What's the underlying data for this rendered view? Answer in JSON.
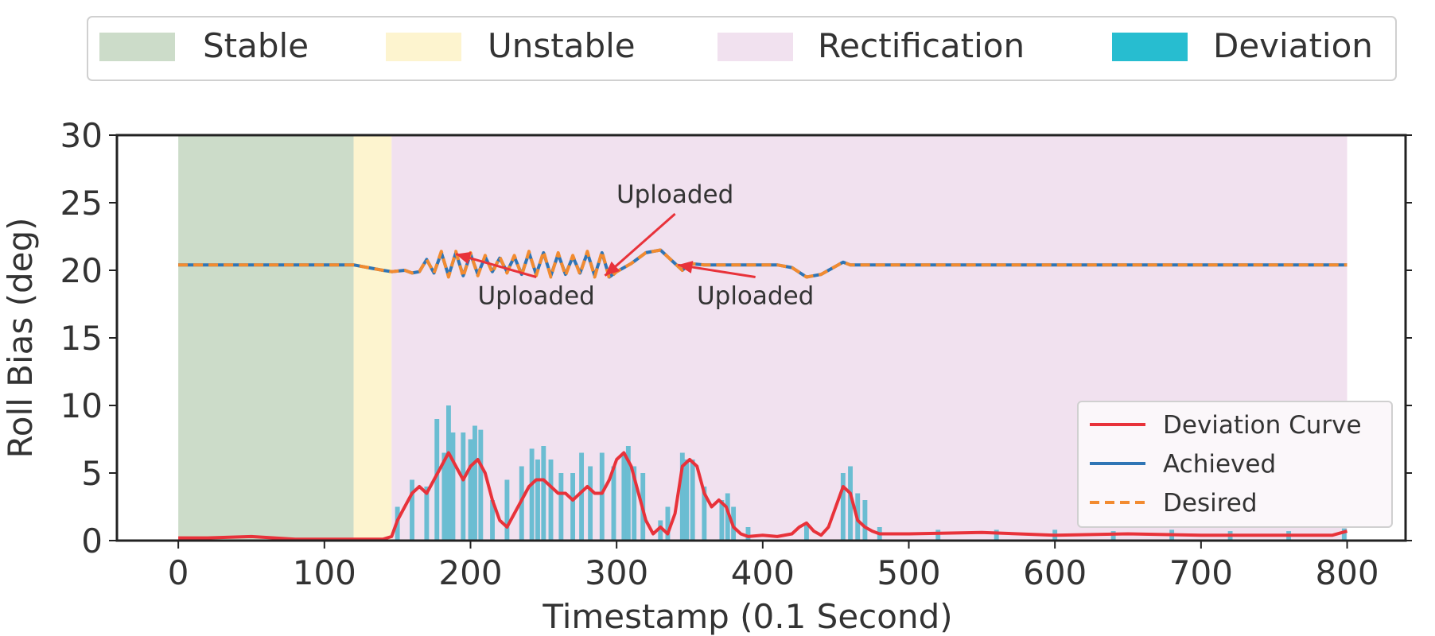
{
  "top_legend": [
    {
      "label": "Stable",
      "color": "#ccdcc9"
    },
    {
      "label": "Unstable",
      "color": "#fdf4cf"
    },
    {
      "label": "Rectification",
      "color": "#f1e1ef"
    },
    {
      "label": "Deviation",
      "color": "#27bdd0"
    }
  ],
  "chart_data": {
    "type": "line",
    "title": "",
    "xlabel": "Timestamp (0.1 Second)",
    "ylabel": "Roll Bias (deg)",
    "xlim": [
      -42,
      840
    ],
    "ylim": [
      0,
      30
    ],
    "xticks": [
      0,
      100,
      200,
      300,
      400,
      500,
      600,
      700,
      800
    ],
    "yticks": [
      0,
      5,
      10,
      15,
      20,
      25,
      30
    ],
    "grid": false,
    "regions": [
      {
        "label": "Stable",
        "x0": 0,
        "x1": 120,
        "color": "#ccdcc9"
      },
      {
        "label": "Unstable",
        "x0": 120,
        "x1": 146,
        "color": "#fdf4cf"
      },
      {
        "label": "Rectification",
        "x0": 146,
        "x1": 800,
        "color": "#f1e1ef"
      }
    ],
    "deviation_bars": {
      "label": "Deviation",
      "color": "#6bbdd2",
      "x": [
        150,
        160,
        170,
        177,
        182,
        185,
        188,
        195,
        200,
        203,
        207,
        215,
        225,
        235,
        242,
        246,
        250,
        255,
        262,
        270,
        276,
        282,
        290,
        298,
        305,
        308,
        312,
        318,
        330,
        335,
        345,
        348,
        352,
        360,
        372,
        376,
        380,
        390,
        430,
        455,
        460,
        465,
        470,
        480,
        520,
        560,
        600,
        640,
        680,
        720,
        760,
        798
      ],
      "values": [
        2.5,
        4.5,
        4.0,
        9.0,
        6.5,
        10.0,
        8.0,
        8.0,
        7.5,
        8.5,
        8.2,
        3.0,
        4.5,
        5.5,
        6.8,
        6.0,
        7.0,
        6.0,
        5.0,
        5.0,
        6.5,
        5.5,
        6.5,
        5.5,
        6.5,
        7.0,
        5.5,
        5.0,
        1.5,
        2.5,
        6.5,
        6.0,
        6.0,
        4.0,
        3.0,
        3.5,
        2.5,
        1.0,
        1.2,
        5.0,
        5.5,
        3.5,
        3.0,
        1.0,
        0.8,
        0.8,
        0.8,
        0.7,
        0.8,
        0.7,
        0.7,
        0.9
      ]
    },
    "series": [
      {
        "name": "Deviation Curve",
        "color": "#e8323a",
        "style": "solid",
        "x": [
          0,
          20,
          50,
          80,
          120,
          140,
          146,
          150,
          155,
          160,
          165,
          170,
          175,
          180,
          185,
          190,
          195,
          200,
          205,
          210,
          215,
          220,
          225,
          230,
          235,
          240,
          245,
          250,
          255,
          260,
          265,
          270,
          275,
          280,
          285,
          290,
          295,
          300,
          305,
          310,
          315,
          320,
          325,
          330,
          335,
          340,
          345,
          350,
          355,
          360,
          365,
          370,
          375,
          380,
          385,
          390,
          400,
          410,
          420,
          425,
          430,
          435,
          440,
          445,
          450,
          455,
          460,
          465,
          470,
          475,
          480,
          500,
          550,
          600,
          650,
          700,
          750,
          790,
          800
        ],
        "y": [
          0.2,
          0.2,
          0.3,
          0.1,
          0.1,
          0.1,
          0.3,
          1.5,
          2.5,
          3.5,
          4.0,
          3.5,
          4.5,
          5.5,
          6.5,
          5.5,
          4.5,
          5.5,
          6.0,
          5.0,
          3.0,
          1.5,
          1.0,
          2.0,
          3.0,
          4.0,
          4.5,
          4.5,
          4.0,
          3.5,
          3.5,
          3.0,
          3.5,
          4.0,
          3.5,
          3.5,
          4.5,
          6.0,
          6.5,
          5.5,
          3.5,
          1.5,
          0.5,
          1.0,
          0.5,
          2.0,
          5.5,
          6.0,
          5.5,
          3.5,
          2.5,
          3.0,
          2.5,
          1.0,
          0.5,
          0.3,
          0.4,
          0.3,
          0.5,
          1.0,
          1.3,
          0.7,
          0.4,
          1.0,
          2.5,
          4.0,
          3.5,
          1.5,
          1.0,
          0.7,
          0.5,
          0.5,
          0.6,
          0.4,
          0.5,
          0.4,
          0.4,
          0.4,
          0.7
        ]
      },
      {
        "name": "Achieved",
        "color": "#2f75b5",
        "style": "solid",
        "x": [
          0,
          120,
          130,
          140,
          146,
          155,
          160,
          165,
          170,
          175,
          180,
          185,
          190,
          195,
          200,
          205,
          210,
          215,
          220,
          225,
          230,
          235,
          240,
          245,
          250,
          255,
          260,
          265,
          270,
          275,
          280,
          285,
          290,
          295,
          300,
          310,
          320,
          330,
          335,
          340,
          345,
          350,
          360,
          400,
          410,
          420,
          430,
          440,
          450,
          455,
          460,
          470,
          800
        ],
        "y": [
          20.4,
          20.4,
          20.2,
          20.0,
          19.9,
          20.0,
          19.8,
          19.9,
          20.8,
          19.8,
          21.3,
          19.6,
          21.3,
          19.6,
          21.2,
          19.7,
          21.0,
          19.9,
          20.9,
          19.9,
          21.0,
          19.7,
          21.3,
          19.7,
          21.3,
          19.6,
          21.2,
          19.7,
          21.0,
          19.8,
          21.3,
          19.6,
          21.3,
          19.5,
          19.9,
          20.5,
          21.3,
          21.5,
          21.0,
          20.5,
          20.0,
          20.5,
          20.4,
          20.4,
          20.4,
          20.2,
          19.5,
          19.7,
          20.3,
          20.6,
          20.4,
          20.4,
          20.4
        ]
      },
      {
        "name": "Desired",
        "color": "#f28b30",
        "style": "dashed",
        "x": [
          0,
          120,
          130,
          140,
          146,
          155,
          160,
          165,
          170,
          175,
          180,
          185,
          190,
          195,
          200,
          205,
          210,
          215,
          220,
          225,
          230,
          235,
          240,
          245,
          250,
          255,
          260,
          265,
          270,
          275,
          280,
          285,
          290,
          295,
          300,
          310,
          320,
          330,
          335,
          340,
          345,
          350,
          360,
          400,
          410,
          420,
          430,
          440,
          450,
          455,
          460,
          470,
          800
        ],
        "y": [
          20.4,
          20.4,
          20.2,
          20.0,
          19.9,
          20.0,
          19.8,
          19.9,
          20.8,
          19.8,
          21.4,
          19.5,
          21.4,
          19.5,
          21.3,
          19.6,
          21.1,
          19.8,
          21.0,
          19.8,
          21.1,
          19.6,
          21.4,
          19.6,
          21.4,
          19.5,
          21.3,
          19.6,
          21.1,
          19.7,
          21.4,
          19.5,
          21.4,
          19.4,
          19.9,
          20.5,
          21.3,
          21.5,
          21.0,
          20.5,
          20.0,
          20.5,
          20.4,
          20.4,
          20.4,
          20.2,
          19.5,
          19.7,
          20.3,
          20.6,
          20.4,
          20.4,
          20.4
        ]
      }
    ],
    "legend": {
      "position": "bottom-right",
      "entries": [
        "Deviation Curve",
        "Achieved",
        "Desired"
      ]
    },
    "annotations": [
      {
        "text": "Uploaded",
        "target": [
          190,
          21.2
        ],
        "label_at": [
          245,
          17.5
        ]
      },
      {
        "text": "Uploaded",
        "target": [
          292,
          19.6
        ],
        "label_at": [
          340,
          25
        ]
      },
      {
        "text": "Uploaded",
        "target": [
          342,
          20.4
        ],
        "label_at": [
          395,
          17.5
        ]
      }
    ]
  }
}
